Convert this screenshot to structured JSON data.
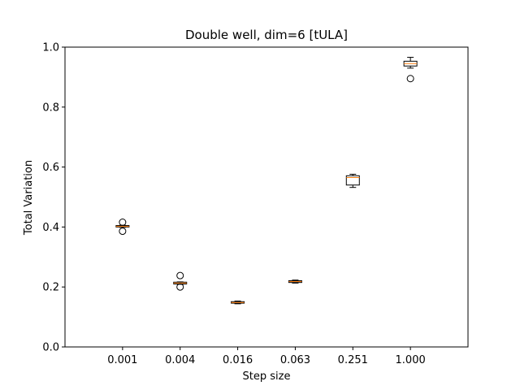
{
  "chart_data": {
    "type": "box",
    "title": "Double well, dim=6   [tULA]",
    "xlabel": "Step size",
    "ylabel": "Total Variation",
    "categories": [
      "0.001",
      "0.004",
      "0.016",
      "0.063",
      "0.251",
      "1.000"
    ],
    "ylim": [
      0.0,
      1.0
    ],
    "yticks": [
      0.0,
      0.2,
      0.4,
      0.6,
      0.8,
      1.0
    ],
    "ytick_labels": [
      "0.0",
      "0.2",
      "0.4",
      "0.6",
      "0.8",
      "1.0"
    ],
    "grid": false,
    "legend": "none",
    "boxes": [
      {
        "category": "0.001",
        "whisker_low": 0.399,
        "q1": 0.4,
        "median": 0.402,
        "q3": 0.405,
        "whisker_high": 0.406,
        "outliers": [
          0.416,
          0.386
        ]
      },
      {
        "category": "0.004",
        "whisker_low": 0.209,
        "q1": 0.21,
        "median": 0.213,
        "q3": 0.216,
        "whisker_high": 0.217,
        "outliers": [
          0.238,
          0.2
        ]
      },
      {
        "category": "0.016",
        "whisker_low": 0.144,
        "q1": 0.146,
        "median": 0.148,
        "q3": 0.151,
        "whisker_high": 0.153,
        "outliers": []
      },
      {
        "category": "0.063",
        "whisker_low": 0.213,
        "q1": 0.215,
        "median": 0.218,
        "q3": 0.221,
        "whisker_high": 0.223,
        "outliers": []
      },
      {
        "category": "0.251",
        "whisker_low": 0.532,
        "q1": 0.54,
        "median": 0.565,
        "q3": 0.571,
        "whisker_high": 0.576,
        "outliers": []
      },
      {
        "category": "1.000",
        "whisker_low": 0.93,
        "q1": 0.937,
        "median": 0.945,
        "q3": 0.953,
        "whisker_high": 0.966,
        "outliers": [
          0.895
        ]
      }
    ],
    "colors": {
      "box_edge": "#000000",
      "median": "#ff7f0e",
      "outlier_edge": "#000000",
      "background": "#ffffff"
    }
  }
}
